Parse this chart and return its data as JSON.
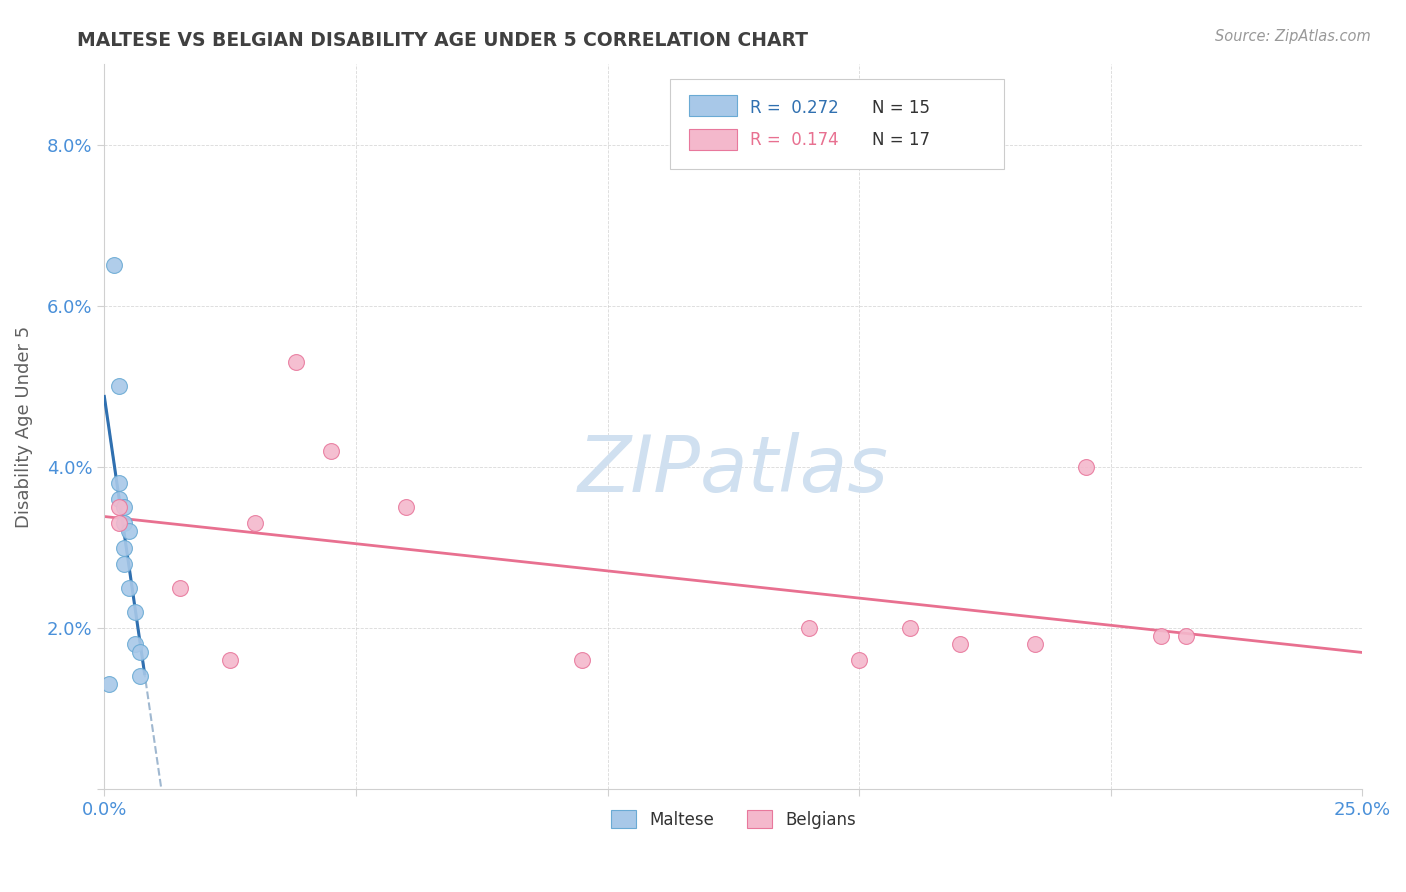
{
  "title": "MALTESE VS BELGIAN DISABILITY AGE UNDER 5 CORRELATION CHART",
  "source": "Source: ZipAtlas.com",
  "ylabel": "Disability Age Under 5",
  "xlim": [
    0.0,
    0.25
  ],
  "ylim": [
    0.0,
    0.09
  ],
  "xticks": [
    0.0,
    0.05,
    0.1,
    0.15,
    0.2,
    0.25
  ],
  "xticklabels": [
    "0.0%",
    "",
    "",
    "",
    "",
    "25.0%"
  ],
  "yticks": [
    0.0,
    0.02,
    0.04,
    0.06,
    0.08
  ],
  "yticklabels": [
    "",
    "2.0%",
    "4.0%",
    "6.0%",
    "8.0%"
  ],
  "maltese_x": [
    0.002,
    0.003,
    0.003,
    0.003,
    0.004,
    0.004,
    0.004,
    0.004,
    0.005,
    0.005,
    0.006,
    0.006,
    0.007,
    0.007,
    0.001
  ],
  "maltese_y": [
    0.065,
    0.05,
    0.038,
    0.036,
    0.035,
    0.033,
    0.03,
    0.028,
    0.032,
    0.025,
    0.022,
    0.018,
    0.017,
    0.014,
    0.013
  ],
  "belgians_x": [
    0.003,
    0.003,
    0.015,
    0.025,
    0.03,
    0.038,
    0.045,
    0.06,
    0.095,
    0.15,
    0.16,
    0.17,
    0.185,
    0.195,
    0.21,
    0.215,
    0.14
  ],
  "belgians_y": [
    0.033,
    0.035,
    0.025,
    0.016,
    0.033,
    0.053,
    0.042,
    0.035,
    0.016,
    0.016,
    0.02,
    0.018,
    0.018,
    0.04,
    0.019,
    0.019,
    0.02
  ],
  "maltese_R": 0.272,
  "maltese_N": 15,
  "belgians_R": 0.174,
  "belgians_N": 17,
  "maltese_scatter_color": "#a8c8e8",
  "maltese_scatter_edge": "#6aaad4",
  "belgians_scatter_color": "#f4b8cc",
  "belgians_scatter_edge": "#e8789c",
  "maltese_dash_color": "#a0b8d0",
  "maltese_solid_color": "#3070b0",
  "belgians_line_color": "#e87090",
  "grid_color": "#d0d0d0",
  "title_color": "#404040",
  "axis_label_color": "#606060",
  "tick_color": "#4a90d9",
  "watermark_color": "#d0e0f0",
  "background_color": "#ffffff"
}
